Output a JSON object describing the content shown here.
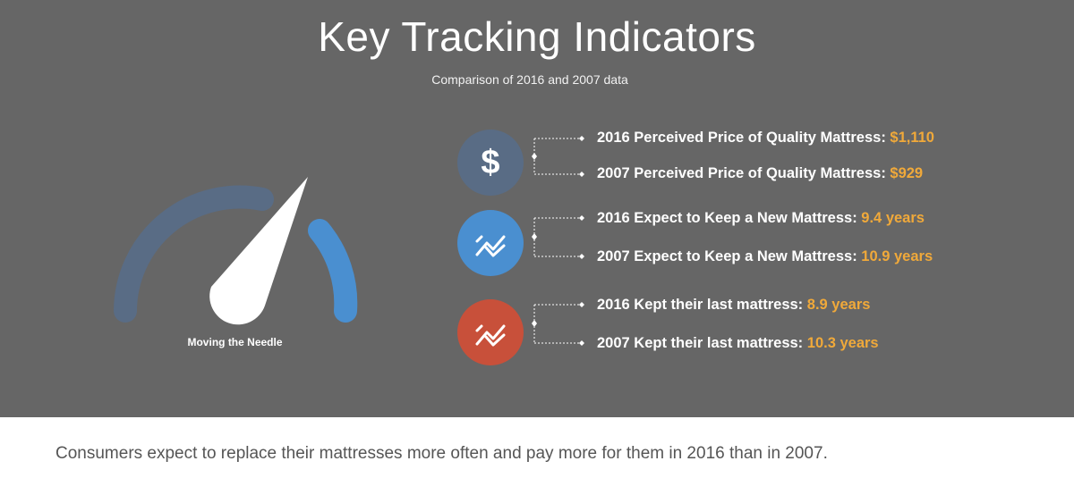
{
  "header": {
    "title": "Key Tracking Indicators",
    "subtitle": "Comparison of 2016 and 2007 data"
  },
  "gauge": {
    "label": "Moving the Needle",
    "colors": {
      "arc_main": "#596c85",
      "arc_accent": "#4a8fd0",
      "needle": "#ffffff"
    }
  },
  "groups": [
    {
      "icon": "dollar-icon",
      "icon_label": "$",
      "color": "#596c85",
      "rows": [
        {
          "label": "2016 Perceived Price of Quality Mattress: ",
          "value": "$1,110"
        },
        {
          "label": "2007 Perceived Price of Quality Mattress: ",
          "value": "$929"
        }
      ]
    },
    {
      "icon": "trend-chart-icon",
      "color": "#4a8fd0",
      "rows": [
        {
          "label": "2016 Expect to Keep a New Mattress: ",
          "value": "9.4 years"
        },
        {
          "label": "2007 Expect to Keep a New Mattress: ",
          "value": "10.9 years"
        }
      ]
    },
    {
      "icon": "trend-chart-icon",
      "color": "#c8503a",
      "rows": [
        {
          "label": "2016 Kept their last mattress: ",
          "value": "8.9 years"
        },
        {
          "label": "2007 Kept their last mattress: ",
          "value": "10.3 years"
        }
      ]
    }
  ],
  "colors": {
    "panel_bg": "#666666",
    "value_accent": "#f0a93a",
    "footer_text": "#555555"
  },
  "footer": {
    "text": "Consumers expect to replace their mattresses more often and pay more for them in 2016 than in 2007."
  }
}
